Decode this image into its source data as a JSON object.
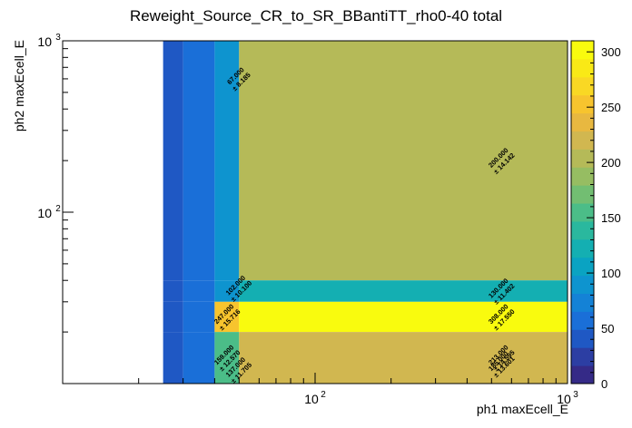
{
  "chart_data": {
    "type": "heatmap",
    "title": "Reweight_Source_CR_to_SR_BBantiTT_rho0-40 total",
    "xlabel": "ph1 maxEcell_E",
    "ylabel": "ph2 maxEcell_E",
    "xscale": "log",
    "yscale": "log",
    "x_edges": [
      25,
      30,
      40,
      50,
      1000
    ],
    "y_edges": [
      10,
      20,
      30,
      40,
      1000
    ],
    "xlim": [
      10,
      1000
    ],
    "ylim": [
      10,
      1000
    ],
    "x_tick_labels": [
      {
        "value": 100,
        "label": "10",
        "exp": "2"
      },
      {
        "value": 1000,
        "label": "10",
        "exp": "3"
      }
    ],
    "y_tick_labels": [
      {
        "value": 100,
        "label": "10",
        "exp": "2"
      },
      {
        "value": 1000,
        "label": "10",
        "exp": "3"
      }
    ],
    "cells": [
      {
        "ix": 0,
        "iy": 3,
        "value": 35
      },
      {
        "ix": 1,
        "iy": 3,
        "value": 60
      },
      {
        "ix": 2,
        "iy": 3,
        "value": 90
      },
      {
        "ix": 3,
        "iy": 3,
        "value": 200,
        "label": "200.000",
        "error": "± 14.142"
      },
      {
        "ix": 0,
        "iy": 2,
        "value": 40
      },
      {
        "ix": 1,
        "iy": 2,
        "value": 65
      },
      {
        "ix": 2,
        "iy": 2,
        "value": 95
      },
      {
        "ix": 3,
        "iy": 2,
        "value": 130,
        "label": "130.000",
        "error": "± 11.402"
      },
      {
        "ix": 0,
        "iy": 1,
        "value": 40
      },
      {
        "ix": 1,
        "iy": 1,
        "value": 65
      },
      {
        "ix": 2,
        "iy": 1,
        "value": 247,
        "label": "247.000",
        "error": "± 15.716"
      },
      {
        "ix": 3,
        "iy": 1,
        "value": 308,
        "label": "308.000",
        "error": "± 17.550"
      },
      {
        "ix": 0,
        "iy": 0,
        "value": 40
      },
      {
        "ix": 1,
        "iy": 0,
        "value": 65
      },
      {
        "ix": 2,
        "iy": 0,
        "value": 159,
        "label": "159.000",
        "error": "± 12.570"
      },
      {
        "ix": 3,
        "iy": 0,
        "value": 213,
        "label": "213.000",
        "error": "± 14.595"
      }
    ],
    "extra_labels": [
      {
        "x": 950,
        "y": 13,
        "label": "185.000",
        "error": "± 13.601"
      },
      {
        "x": 45,
        "y": 12,
        "label": "137.000",
        "error": "± 11.705"
      },
      {
        "x": 45,
        "y": 600,
        "label": "67.000",
        "error": "± 8.185"
      },
      {
        "x": 45,
        "y": 36,
        "label": "102.000",
        "error": "± 10.100"
      }
    ],
    "zlim": [
      0,
      310
    ],
    "colorbar_ticks": [
      0,
      50,
      100,
      150,
      200,
      250,
      300
    ],
    "palette": [
      "#352a87",
      "#2c3ea3",
      "#1f58c4",
      "#1a6fd8",
      "#1482d6",
      "#0e94cf",
      "#0aa3c2",
      "#14afb2",
      "#2ab89e",
      "#4bbd88",
      "#72be72",
      "#96bd62",
      "#b5ba58",
      "#d1b750",
      "#e8b840",
      "#f7c42e",
      "#f9d824",
      "#f9e916",
      "#f9fb0e"
    ],
    "grid": false
  }
}
